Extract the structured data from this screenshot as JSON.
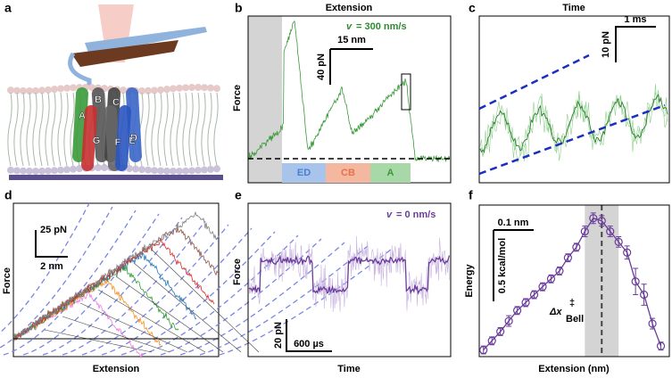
{
  "panel_labels": [
    "a",
    "b",
    "c",
    "d",
    "e",
    "f"
  ],
  "panel_a": {
    "helices": [
      "A",
      "B",
      "C",
      "D",
      "E",
      "F",
      "G"
    ]
  },
  "panel_b": {
    "title": "Extension",
    "y_label": "Force",
    "speed_symbol": "v",
    "speed": "= 300 nm/s",
    "scale_x": "15 nm",
    "scale_y": "40 pN",
    "segments": [
      "ED",
      "CB",
      "A"
    ]
  },
  "panel_c": {
    "title": "Time",
    "scale_x": "1 ms",
    "scale_y": "10 pN"
  },
  "panel_d": {
    "y_label": "Force",
    "x_label": "Extension",
    "scale_x": "2 nm",
    "scale_y": "25 pN"
  },
  "panel_e": {
    "y_label": "Force",
    "x_label": "Time",
    "speed_symbol": "v",
    "speed": "= 0 nm/s",
    "scale_x": "600 µs",
    "scale_y": "20 pN"
  },
  "panel_f": {
    "y_label": "Energy",
    "x_label": "Extension (nm)",
    "scale_x": "0.1 nm",
    "scale_y": "0.5 kcal/mol",
    "annotation": {
      "delta": "Δx",
      "dagger": "‡",
      "sub": "Bell"
    },
    "x": [
      0,
      0.02,
      0.04,
      0.06,
      0.08,
      0.1,
      0.12,
      0.14,
      0.16,
      0.18,
      0.2,
      0.22,
      0.24,
      0.26,
      0.28,
      0.3,
      0.32,
      0.34,
      0.36,
      0.38,
      0.4,
      0.42
    ],
    "energy": [
      0.0,
      0.07,
      0.14,
      0.22,
      0.3,
      0.36,
      0.42,
      0.48,
      0.54,
      0.6,
      0.7,
      0.78,
      0.9,
      1.0,
      0.98,
      0.9,
      0.82,
      0.74,
      0.52,
      0.42,
      0.2,
      0.03
    ],
    "errors": [
      0.03,
      0.03,
      0.03,
      0.04,
      0.03,
      0.03,
      0.03,
      0.03,
      0.03,
      0.03,
      0.03,
      0.03,
      0.04,
      0.04,
      0.04,
      0.04,
      0.04,
      0.05,
      0.1,
      0.08,
      0.04,
      0.03
    ],
    "xlim": [
      -0.01,
      0.44
    ],
    "ylim": [
      -0.05,
      1.1
    ],
    "transition_x": 0.28,
    "shade": [
      0.24,
      0.32
    ],
    "color": "#6a3d9a"
  }
}
